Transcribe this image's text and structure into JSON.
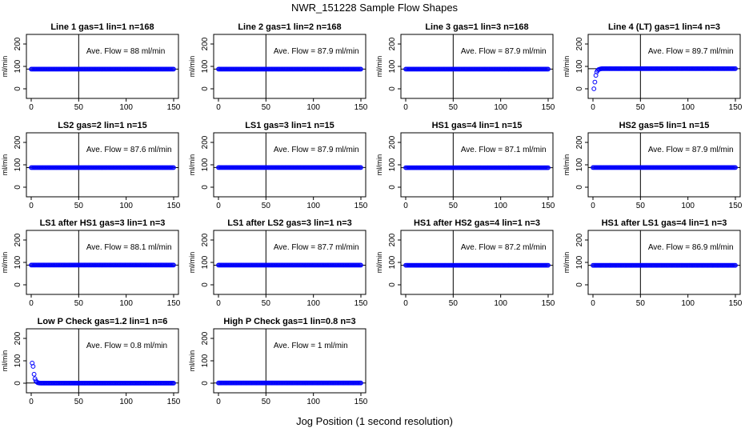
{
  "figure": {
    "title": "NWR_151228  Sample Flow Shapes",
    "xlabel": "Jog Position (1 second resolution)"
  },
  "style": {
    "point_color": "#0000ff",
    "line_color": "#000000"
  },
  "chart_data": [
    {
      "type": "scatter",
      "title": "Line 1 gas=1 lin=1 n=168",
      "ylabel": "ml/min",
      "annotation": "Ave. Flow =  88  ml/min",
      "xlim": [
        0,
        150
      ],
      "ylim": [
        0,
        200
      ],
      "xticks": [
        0,
        50,
        100,
        150
      ],
      "yticks": [
        0,
        100,
        200
      ],
      "vline_x": 50,
      "hline_y": 88,
      "points": [
        [
          0,
          88
        ],
        [
          150,
          88
        ]
      ],
      "point_step": 1
    },
    {
      "type": "scatter",
      "title": "Line 2 gas=1 lin=2 n=168",
      "ylabel": "ml/min",
      "annotation": "Ave. Flow =  87.9  ml/min",
      "xlim": [
        0,
        150
      ],
      "ylim": [
        0,
        200
      ],
      "xticks": [
        0,
        50,
        100,
        150
      ],
      "yticks": [
        0,
        100,
        200
      ],
      "vline_x": 50,
      "hline_y": 87.9,
      "points": [
        [
          0,
          87.9
        ],
        [
          150,
          87.9
        ]
      ],
      "point_step": 1
    },
    {
      "type": "scatter",
      "title": "Line 3 gas=1 lin=3 n=168",
      "ylabel": "ml/min",
      "annotation": "Ave. Flow =  87.9  ml/min",
      "xlim": [
        0,
        150
      ],
      "ylim": [
        0,
        200
      ],
      "xticks": [
        0,
        50,
        100,
        150
      ],
      "yticks": [
        0,
        100,
        200
      ],
      "vline_x": 50,
      "hline_y": 87.9,
      "points": [
        [
          0,
          87.9
        ],
        [
          150,
          87.9
        ]
      ],
      "point_step": 1
    },
    {
      "type": "scatter",
      "title": "Line 4 (LT) gas=1 lin=4 n=3",
      "ylabel": "ml/min",
      "annotation": "Ave. Flow =  89.7  ml/min",
      "xlim": [
        0,
        150
      ],
      "ylim": [
        0,
        200
      ],
      "xticks": [
        0,
        50,
        100,
        150
      ],
      "yticks": [
        0,
        100,
        200
      ],
      "vline_x": 50,
      "hline_y": 89.7,
      "points": [
        [
          1,
          0
        ],
        [
          2,
          30
        ],
        [
          3,
          60
        ],
        [
          4,
          75
        ],
        [
          5,
          82
        ],
        [
          6,
          86
        ],
        [
          8,
          89
        ],
        [
          10,
          90
        ],
        [
          150,
          90
        ]
      ],
      "point_step": 1
    },
    {
      "type": "scatter",
      "title": "LS2 gas=2 lin=1 n=15",
      "ylabel": "ml/min",
      "annotation": "Ave. Flow =  87.6  ml/min",
      "xlim": [
        0,
        150
      ],
      "ylim": [
        0,
        200
      ],
      "xticks": [
        0,
        50,
        100,
        150
      ],
      "yticks": [
        0,
        100,
        200
      ],
      "vline_x": 50,
      "hline_y": 87.6,
      "points": [
        [
          0,
          87.6
        ],
        [
          150,
          87.6
        ]
      ],
      "point_step": 1
    },
    {
      "type": "scatter",
      "title": "LS1 gas=3 lin=1 n=15",
      "ylabel": "ml/min",
      "annotation": "Ave. Flow =  87.9  ml/min",
      "xlim": [
        0,
        150
      ],
      "ylim": [
        0,
        200
      ],
      "xticks": [
        0,
        50,
        100,
        150
      ],
      "yticks": [
        0,
        100,
        200
      ],
      "vline_x": 50,
      "hline_y": 87.9,
      "points": [
        [
          0,
          87.9
        ],
        [
          150,
          87.9
        ]
      ],
      "point_step": 1
    },
    {
      "type": "scatter",
      "title": "HS1 gas=4 lin=1 n=15",
      "ylabel": "ml/min",
      "annotation": "Ave. Flow =  87.1  ml/min",
      "xlim": [
        0,
        150
      ],
      "ylim": [
        0,
        200
      ],
      "xticks": [
        0,
        50,
        100,
        150
      ],
      "yticks": [
        0,
        100,
        200
      ],
      "vline_x": 50,
      "hline_y": 87.1,
      "points": [
        [
          0,
          87.1
        ],
        [
          150,
          87.1
        ]
      ],
      "point_step": 1
    },
    {
      "type": "scatter",
      "title": "HS2 gas=5 lin=1 n=15",
      "ylabel": "ml/min",
      "annotation": "Ave. Flow =  87.9  ml/min",
      "xlim": [
        0,
        150
      ],
      "ylim": [
        0,
        200
      ],
      "xticks": [
        0,
        50,
        100,
        150
      ],
      "yticks": [
        0,
        100,
        200
      ],
      "vline_x": 50,
      "hline_y": 87.9,
      "points": [
        [
          0,
          87.9
        ],
        [
          150,
          87.9
        ]
      ],
      "point_step": 1
    },
    {
      "type": "scatter",
      "title": "LS1 after HS1 gas=3 lin=1 n=3",
      "ylabel": "ml/min",
      "annotation": "Ave. Flow =  88.1  ml/min",
      "xlim": [
        0,
        150
      ],
      "ylim": [
        0,
        200
      ],
      "xticks": [
        0,
        50,
        100,
        150
      ],
      "yticks": [
        0,
        100,
        200
      ],
      "vline_x": 50,
      "hline_y": 88.1,
      "points": [
        [
          0,
          88.1
        ],
        [
          150,
          88.1
        ]
      ],
      "point_step": 1
    },
    {
      "type": "scatter",
      "title": "LS1 after LS2 gas=3 lin=1 n=3",
      "ylabel": "ml/min",
      "annotation": "Ave. Flow =  87.7  ml/min",
      "xlim": [
        0,
        150
      ],
      "ylim": [
        0,
        200
      ],
      "xticks": [
        0,
        50,
        100,
        150
      ],
      "yticks": [
        0,
        100,
        200
      ],
      "vline_x": 50,
      "hline_y": 87.7,
      "points": [
        [
          0,
          87.7
        ],
        [
          150,
          87.7
        ]
      ],
      "point_step": 1
    },
    {
      "type": "scatter",
      "title": "HS1 after HS2 gas=4 lin=1 n=3",
      "ylabel": "ml/min",
      "annotation": "Ave. Flow =  87.2  ml/min",
      "xlim": [
        0,
        150
      ],
      "ylim": [
        0,
        200
      ],
      "xticks": [
        0,
        50,
        100,
        150
      ],
      "yticks": [
        0,
        100,
        200
      ],
      "vline_x": 50,
      "hline_y": 87.2,
      "points": [
        [
          0,
          87.2
        ],
        [
          150,
          87.2
        ]
      ],
      "point_step": 1
    },
    {
      "type": "scatter",
      "title": "HS1 after LS1 gas=4 lin=1 n=3",
      "ylabel": "ml/min",
      "annotation": "Ave. Flow =  86.9  ml/min",
      "xlim": [
        0,
        150
      ],
      "ylim": [
        0,
        200
      ],
      "xticks": [
        0,
        50,
        100,
        150
      ],
      "yticks": [
        0,
        100,
        200
      ],
      "vline_x": 50,
      "hline_y": 86.9,
      "points": [
        [
          0,
          86.9
        ],
        [
          150,
          86.9
        ]
      ],
      "point_step": 1
    },
    {
      "type": "scatter",
      "title": "Low P Check gas=1.2 lin=1 n=6",
      "ylabel": "ml/min",
      "annotation": "Ave. Flow =  0.8  ml/min",
      "xlim": [
        0,
        150
      ],
      "ylim": [
        0,
        200
      ],
      "xticks": [
        0,
        50,
        100,
        150
      ],
      "yticks": [
        0,
        100,
        200
      ],
      "vline_x": 50,
      "hline_y": 0.8,
      "points": [
        [
          1,
          90
        ],
        [
          2,
          75
        ],
        [
          3,
          40
        ],
        [
          4,
          20
        ],
        [
          5,
          10
        ],
        [
          6,
          5
        ],
        [
          7,
          2
        ],
        [
          8,
          1
        ],
        [
          10,
          0.5
        ],
        [
          150,
          0.5
        ]
      ],
      "point_step": 1
    },
    {
      "type": "scatter",
      "title": "High P Check gas=1 lin=0.8 n=3",
      "ylabel": "ml/min",
      "annotation": "Ave. Flow =  1  ml/min",
      "xlim": [
        0,
        150
      ],
      "ylim": [
        0,
        200
      ],
      "xticks": [
        0,
        50,
        100,
        150
      ],
      "yticks": [
        0,
        100,
        200
      ],
      "vline_x": 50,
      "hline_y": 1,
      "points": [
        [
          0,
          1
        ],
        [
          150,
          1
        ]
      ],
      "point_step": 1
    }
  ]
}
